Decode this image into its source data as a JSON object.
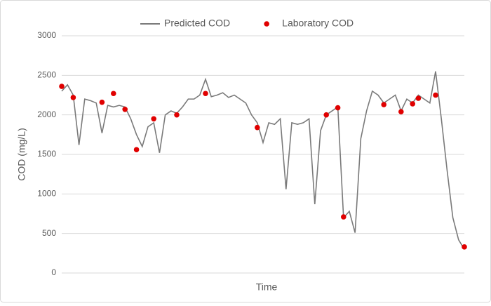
{
  "chart_data": {
    "type": "line",
    "xlabel": "Time",
    "ylabel": "COD (mg/L)",
    "ylim": [
      0,
      3000
    ],
    "yticks": [
      0,
      500,
      1000,
      1500,
      2000,
      2500,
      3000
    ],
    "grid": true,
    "legend": "top",
    "series": [
      {
        "name": "Predicted COD",
        "type": "line",
        "color": "#7a7a7a",
        "values": [
          2300,
          2380,
          2250,
          1620,
          2200,
          2180,
          2150,
          1770,
          2120,
          2100,
          2120,
          2100,
          1950,
          1750,
          1600,
          1850,
          1900,
          1520,
          2000,
          2050,
          2020,
          2100,
          2200,
          2200,
          2250,
          2450,
          2230,
          2250,
          2280,
          2220,
          2250,
          2200,
          2150,
          2000,
          1900,
          1650,
          1900,
          1880,
          1950,
          1060,
          1900,
          1880,
          1900,
          1950,
          870,
          1800,
          2000,
          2050,
          2100,
          700,
          780,
          510,
          1700,
          2050,
          2300,
          2250,
          2150,
          2200,
          2250,
          2050,
          2200,
          2150,
          2250,
          2200,
          2150,
          2550,
          1950,
          1300,
          700,
          420,
          300
        ]
      },
      {
        "name": "Laboratory COD",
        "type": "scatter",
        "color": "#e00000",
        "values": [
          2360,
          null,
          2220,
          null,
          null,
          null,
          null,
          2160,
          null,
          2270,
          null,
          2070,
          null,
          1560,
          null,
          null,
          1950,
          null,
          null,
          null,
          2000,
          null,
          null,
          null,
          null,
          2270,
          null,
          null,
          null,
          null,
          null,
          null,
          null,
          null,
          1840,
          null,
          null,
          null,
          null,
          null,
          null,
          null,
          null,
          null,
          null,
          null,
          2000,
          null,
          2090,
          710,
          null,
          null,
          null,
          null,
          null,
          null,
          2130,
          null,
          null,
          2040,
          null,
          2140,
          2210,
          null,
          null,
          2250,
          null,
          null,
          null,
          null,
          330
        ]
      }
    ]
  }
}
